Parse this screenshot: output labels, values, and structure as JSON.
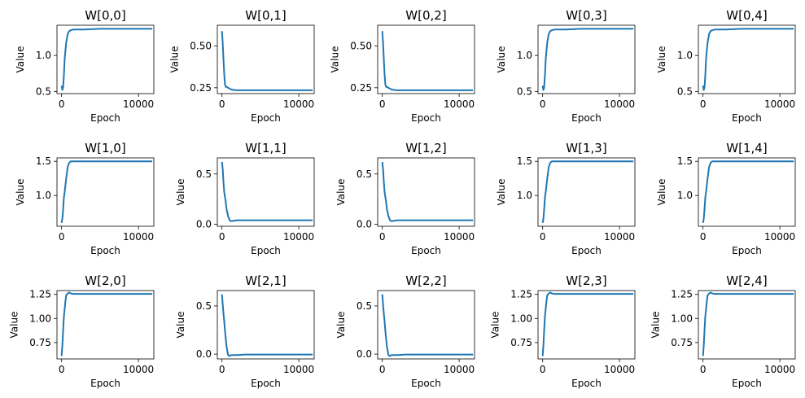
{
  "chart_data": [
    {
      "type": "line",
      "title": "W[0,0]",
      "xlabel": "Epoch",
      "ylabel": "Value",
      "xlim": [
        -600,
        12000
      ],
      "ylim": [
        0.47,
        1.42
      ],
      "xticks": [
        0,
        10000
      ],
      "yticks": [
        0.5,
        1.0
      ],
      "ytick_labels": [
        "0.5",
        "1.0"
      ],
      "color": "#1f77b4",
      "series": [
        {
          "x": [
            0,
            100,
            200,
            300,
            400,
            600,
            800,
            1000,
            1200,
            1500,
            2000,
            3000,
            5000,
            8000,
            10000,
            11800
          ],
          "y": [
            0.58,
            0.52,
            0.56,
            0.72,
            0.95,
            1.18,
            1.3,
            1.34,
            1.35,
            1.36,
            1.36,
            1.36,
            1.37,
            1.37,
            1.37,
            1.37
          ]
        }
      ]
    },
    {
      "type": "line",
      "title": "W[0,1]",
      "xlabel": "Epoch",
      "ylabel": "Value",
      "xlim": [
        -600,
        12000
      ],
      "ylim": [
        0.215,
        0.625
      ],
      "xticks": [
        0,
        10000
      ],
      "yticks": [
        0.25,
        0.5
      ],
      "ytick_labels": [
        "0.25",
        "0.50"
      ],
      "color": "#1f77b4",
      "series": [
        {
          "x": [
            0,
            100,
            200,
            300,
            400,
            500,
            600,
            800,
            1000,
            1200,
            1500,
            2000,
            3000,
            5000,
            8000,
            10000,
            11800
          ],
          "y": [
            0.59,
            0.52,
            0.42,
            0.33,
            0.27,
            0.255,
            0.255,
            0.25,
            0.245,
            0.24,
            0.237,
            0.235,
            0.235,
            0.235,
            0.235,
            0.235,
            0.235
          ]
        }
      ]
    },
    {
      "type": "line",
      "title": "W[0,2]",
      "xlabel": "Epoch",
      "ylabel": "Value",
      "xlim": [
        -600,
        12000
      ],
      "ylim": [
        0.215,
        0.625
      ],
      "xticks": [
        0,
        10000
      ],
      "yticks": [
        0.25,
        0.5
      ],
      "ytick_labels": [
        "0.25",
        "0.50"
      ],
      "color": "#1f77b4",
      "series": [
        {
          "x": [
            0,
            100,
            200,
            300,
            400,
            500,
            600,
            800,
            1000,
            1200,
            1500,
            2000,
            3000,
            5000,
            8000,
            10000,
            11800
          ],
          "y": [
            0.59,
            0.52,
            0.42,
            0.33,
            0.27,
            0.255,
            0.255,
            0.25,
            0.245,
            0.24,
            0.237,
            0.235,
            0.235,
            0.235,
            0.235,
            0.235,
            0.235
          ]
        }
      ]
    },
    {
      "type": "line",
      "title": "W[0,3]",
      "xlabel": "Epoch",
      "ylabel": "Value",
      "xlim": [
        -600,
        12000
      ],
      "ylim": [
        0.47,
        1.42
      ],
      "xticks": [
        0,
        10000
      ],
      "yticks": [
        0.5,
        1.0
      ],
      "ytick_labels": [
        "0.5",
        "1.0"
      ],
      "color": "#1f77b4",
      "series": [
        {
          "x": [
            0,
            100,
            200,
            300,
            400,
            600,
            800,
            1000,
            1200,
            1500,
            2000,
            3000,
            5000,
            8000,
            10000,
            11800
          ],
          "y": [
            0.58,
            0.52,
            0.56,
            0.72,
            0.95,
            1.18,
            1.3,
            1.34,
            1.35,
            1.36,
            1.36,
            1.36,
            1.37,
            1.37,
            1.37,
            1.37
          ]
        }
      ]
    },
    {
      "type": "line",
      "title": "W[0,4]",
      "xlabel": "Epoch",
      "ylabel": "Value",
      "xlim": [
        -600,
        12000
      ],
      "ylim": [
        0.47,
        1.42
      ],
      "xticks": [
        0,
        10000
      ],
      "yticks": [
        0.5,
        1.0
      ],
      "ytick_labels": [
        "0.5",
        "1.0"
      ],
      "color": "#1f77b4",
      "series": [
        {
          "x": [
            0,
            100,
            200,
            300,
            400,
            600,
            800,
            1000,
            1200,
            1500,
            2000,
            3000,
            5000,
            8000,
            10000,
            11800
          ],
          "y": [
            0.58,
            0.52,
            0.56,
            0.72,
            0.95,
            1.18,
            1.3,
            1.34,
            1.35,
            1.36,
            1.36,
            1.36,
            1.37,
            1.37,
            1.37,
            1.37
          ]
        }
      ]
    },
    {
      "type": "line",
      "title": "W[1,0]",
      "xlabel": "Epoch",
      "ylabel": "Value",
      "xlim": [
        -600,
        12000
      ],
      "ylim": [
        0.55,
        1.55
      ],
      "xticks": [
        0,
        10000
      ],
      "yticks": [
        1.0,
        1.5
      ],
      "ytick_labels": [
        "1.0",
        "1.5"
      ],
      "color": "#1f77b4",
      "series": [
        {
          "x": [
            0,
            100,
            200,
            300,
            400,
            600,
            800,
            1000,
            1200,
            1500,
            2000,
            3000,
            5000,
            8000,
            10000,
            11800
          ],
          "y": [
            0.6,
            0.66,
            0.8,
            0.97,
            1.05,
            1.25,
            1.42,
            1.48,
            1.5,
            1.5,
            1.5,
            1.5,
            1.5,
            1.5,
            1.5,
            1.5
          ]
        }
      ]
    },
    {
      "type": "line",
      "title": "W[1,1]",
      "xlabel": "Epoch",
      "ylabel": "Value",
      "xlim": [
        -600,
        12000
      ],
      "ylim": [
        -0.02,
        0.66
      ],
      "xticks": [
        0,
        10000
      ],
      "yticks": [
        0.0,
        0.5
      ],
      "ytick_labels": [
        "0.0",
        "0.5"
      ],
      "color": "#1f77b4",
      "series": [
        {
          "x": [
            0,
            100,
            200,
            300,
            400,
            500,
            600,
            800,
            1000,
            1200,
            1500,
            2000,
            3000,
            5000,
            8000,
            10000,
            11800
          ],
          "y": [
            0.62,
            0.55,
            0.42,
            0.32,
            0.27,
            0.22,
            0.15,
            0.08,
            0.04,
            0.03,
            0.035,
            0.04,
            0.04,
            0.04,
            0.04,
            0.04,
            0.04
          ]
        }
      ]
    },
    {
      "type": "line",
      "title": "W[1,2]",
      "xlabel": "Epoch",
      "ylabel": "Value",
      "xlim": [
        -600,
        12000
      ],
      "ylim": [
        -0.02,
        0.66
      ],
      "xticks": [
        0,
        10000
      ],
      "yticks": [
        0.0,
        0.5
      ],
      "ytick_labels": [
        "0.0",
        "0.5"
      ],
      "color": "#1f77b4",
      "series": [
        {
          "x": [
            0,
            100,
            200,
            300,
            400,
            500,
            600,
            800,
            1000,
            1200,
            1500,
            2000,
            3000,
            5000,
            8000,
            10000,
            11800
          ],
          "y": [
            0.62,
            0.55,
            0.42,
            0.32,
            0.27,
            0.22,
            0.15,
            0.08,
            0.04,
            0.03,
            0.035,
            0.04,
            0.04,
            0.04,
            0.04,
            0.04,
            0.04
          ]
        }
      ]
    },
    {
      "type": "line",
      "title": "W[1,3]",
      "xlabel": "Epoch",
      "ylabel": "Value",
      "xlim": [
        -600,
        12000
      ],
      "ylim": [
        0.55,
        1.55
      ],
      "xticks": [
        0,
        10000
      ],
      "yticks": [
        1.0,
        1.5
      ],
      "ytick_labels": [
        "1.0",
        "1.5"
      ],
      "color": "#1f77b4",
      "series": [
        {
          "x": [
            0,
            100,
            200,
            300,
            400,
            600,
            800,
            1000,
            1200,
            1500,
            2000,
            3000,
            5000,
            8000,
            10000,
            11800
          ],
          "y": [
            0.6,
            0.66,
            0.8,
            0.97,
            1.05,
            1.25,
            1.42,
            1.48,
            1.5,
            1.5,
            1.5,
            1.5,
            1.5,
            1.5,
            1.5,
            1.5
          ]
        }
      ]
    },
    {
      "type": "line",
      "title": "W[1,4]",
      "xlabel": "Epoch",
      "ylabel": "Value",
      "xlim": [
        -600,
        12000
      ],
      "ylim": [
        0.55,
        1.55
      ],
      "xticks": [
        0,
        10000
      ],
      "yticks": [
        1.0,
        1.5
      ],
      "ytick_labels": [
        "1.0",
        "1.5"
      ],
      "color": "#1f77b4",
      "series": [
        {
          "x": [
            0,
            100,
            200,
            300,
            400,
            600,
            800,
            1000,
            1200,
            1500,
            2000,
            3000,
            5000,
            8000,
            10000,
            11800
          ],
          "y": [
            0.6,
            0.66,
            0.8,
            0.97,
            1.05,
            1.25,
            1.42,
            1.48,
            1.5,
            1.5,
            1.5,
            1.5,
            1.5,
            1.5,
            1.5,
            1.5
          ]
        }
      ]
    },
    {
      "type": "line",
      "title": "W[2,0]",
      "xlabel": "Epoch",
      "ylabel": "Value",
      "xlim": [
        -600,
        12000
      ],
      "ylim": [
        0.58,
        1.29
      ],
      "xticks": [
        0,
        10000
      ],
      "yticks": [
        0.75,
        1.0,
        1.25
      ],
      "ytick_labels": [
        "0.75",
        "1.00",
        "1.25"
      ],
      "color": "#1f77b4",
      "series": [
        {
          "x": [
            0,
            100,
            200,
            300,
            400,
            500,
            600,
            800,
            1000,
            1200,
            1500,
            2000,
            3000,
            5000,
            8000,
            10000,
            11800
          ],
          "y": [
            0.61,
            0.72,
            0.88,
            1.02,
            1.1,
            1.18,
            1.24,
            1.26,
            1.27,
            1.26,
            1.255,
            1.255,
            1.255,
            1.255,
            1.255,
            1.255,
            1.255
          ]
        }
      ]
    },
    {
      "type": "line",
      "title": "W[2,1]",
      "xlabel": "Epoch",
      "ylabel": "Value",
      "xlim": [
        -600,
        12000
      ],
      "ylim": [
        -0.05,
        0.66
      ],
      "xticks": [
        0,
        10000
      ],
      "yticks": [
        0.0,
        0.5
      ],
      "ytick_labels": [
        "0.0",
        "0.5"
      ],
      "color": "#1f77b4",
      "series": [
        {
          "x": [
            0,
            100,
            200,
            300,
            400,
            500,
            600,
            800,
            1000,
            1200,
            1500,
            2000,
            3000,
            5000,
            8000,
            10000,
            11800
          ],
          "y": [
            0.62,
            0.52,
            0.42,
            0.34,
            0.24,
            0.16,
            0.08,
            -0.01,
            -0.02,
            -0.01,
            -0.01,
            -0.01,
            -0.005,
            -0.005,
            -0.005,
            -0.005,
            -0.005
          ]
        }
      ]
    },
    {
      "type": "line",
      "title": "W[2,2]",
      "xlabel": "Epoch",
      "ylabel": "Value",
      "xlim": [
        -600,
        12000
      ],
      "ylim": [
        -0.05,
        0.66
      ],
      "xticks": [
        0,
        10000
      ],
      "yticks": [
        0.0,
        0.5
      ],
      "ytick_labels": [
        "0.0",
        "0.5"
      ],
      "color": "#1f77b4",
      "series": [
        {
          "x": [
            0,
            100,
            200,
            300,
            400,
            500,
            600,
            800,
            1000,
            1200,
            1500,
            2000,
            3000,
            5000,
            8000,
            10000,
            11800
          ],
          "y": [
            0.62,
            0.52,
            0.42,
            0.34,
            0.24,
            0.16,
            0.08,
            -0.01,
            -0.02,
            -0.01,
            -0.01,
            -0.01,
            -0.005,
            -0.005,
            -0.005,
            -0.005,
            -0.005
          ]
        }
      ]
    },
    {
      "type": "line",
      "title": "W[2,3]",
      "xlabel": "Epoch",
      "ylabel": "Value",
      "xlim": [
        -600,
        12000
      ],
      "ylim": [
        0.58,
        1.29
      ],
      "xticks": [
        0,
        10000
      ],
      "yticks": [
        0.75,
        1.0,
        1.25
      ],
      "ytick_labels": [
        "0.75",
        "1.00",
        "1.25"
      ],
      "color": "#1f77b4",
      "series": [
        {
          "x": [
            0,
            100,
            200,
            300,
            400,
            500,
            600,
            800,
            1000,
            1200,
            1500,
            2000,
            3000,
            5000,
            8000,
            10000,
            11800
          ],
          "y": [
            0.61,
            0.72,
            0.88,
            1.02,
            1.1,
            1.18,
            1.24,
            1.26,
            1.27,
            1.26,
            1.255,
            1.255,
            1.255,
            1.255,
            1.255,
            1.255,
            1.255
          ]
        }
      ]
    },
    {
      "type": "line",
      "title": "W[2,4]",
      "xlabel": "Epoch",
      "ylabel": "Value",
      "xlim": [
        -600,
        12000
      ],
      "ylim": [
        0.58,
        1.29
      ],
      "xticks": [
        0,
        10000
      ],
      "yticks": [
        0.75,
        1.0,
        1.25
      ],
      "ytick_labels": [
        "0.75",
        "1.00",
        "1.25"
      ],
      "color": "#1f77b4",
      "series": [
        {
          "x": [
            0,
            100,
            200,
            300,
            400,
            500,
            600,
            800,
            1000,
            1200,
            1500,
            2000,
            3000,
            5000,
            8000,
            10000,
            11800
          ],
          "y": [
            0.61,
            0.72,
            0.88,
            1.02,
            1.1,
            1.18,
            1.24,
            1.26,
            1.27,
            1.26,
            1.255,
            1.255,
            1.255,
            1.255,
            1.255,
            1.255,
            1.255
          ]
        }
      ]
    }
  ]
}
